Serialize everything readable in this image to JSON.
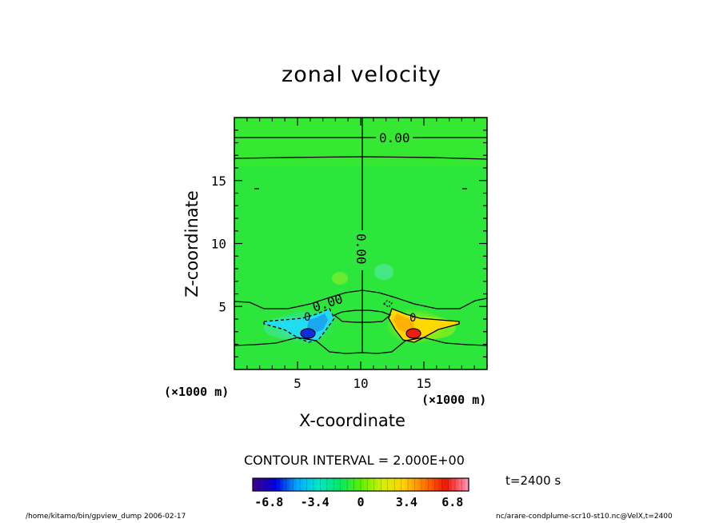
{
  "chart_data": {
    "type": "heatmap",
    "title": "zonal velocity",
    "xlabel": "X-coordinate",
    "ylabel": "Z-coordinate",
    "x_unit_label": "(×1000 m)",
    "xlim": [
      0,
      20
    ],
    "ylim": [
      0,
      20
    ],
    "xticks": [
      5,
      10,
      15
    ],
    "yticks": [
      5,
      10,
      15
    ],
    "contour_interval_label": "CONTOUR INTERVAL = 2.000E+00",
    "contour_labels": [
      "0.00",
      "0.00",
      "0.00",
      "0",
      "0"
    ],
    "colorbar": {
      "min": -8,
      "max": 8,
      "ticks": [
        "-6.8",
        "-3.4",
        "0",
        "3.4",
        "6.8"
      ],
      "colors": [
        "#3c0090",
        "#0000e0",
        "#00aaff",
        "#00e6c8",
        "#00e86a",
        "#5cf000",
        "#d4f000",
        "#ffd200",
        "#ff7800",
        "#ee1400",
        "#ff90b0"
      ]
    },
    "features": [
      {
        "name": "negative core",
        "x": 5.8,
        "z": 2.7,
        "value": -6
      },
      {
        "name": "positive core",
        "x": 14.2,
        "z": 2.7,
        "value": 6
      },
      {
        "name": "left weak negative lobe",
        "x": 6.4,
        "z": 3.4,
        "value": -2
      },
      {
        "name": "right weak positive lobe",
        "x": 13.8,
        "z": 3.4,
        "value": 2
      }
    ]
  },
  "time_label": "t=2400 s",
  "footer_left": "/home/kitamo/bin/gpview_dump  2006-02-17",
  "footer_right": "nc/arare-condplume-scr10-st10.nc@VelX,t=2400"
}
